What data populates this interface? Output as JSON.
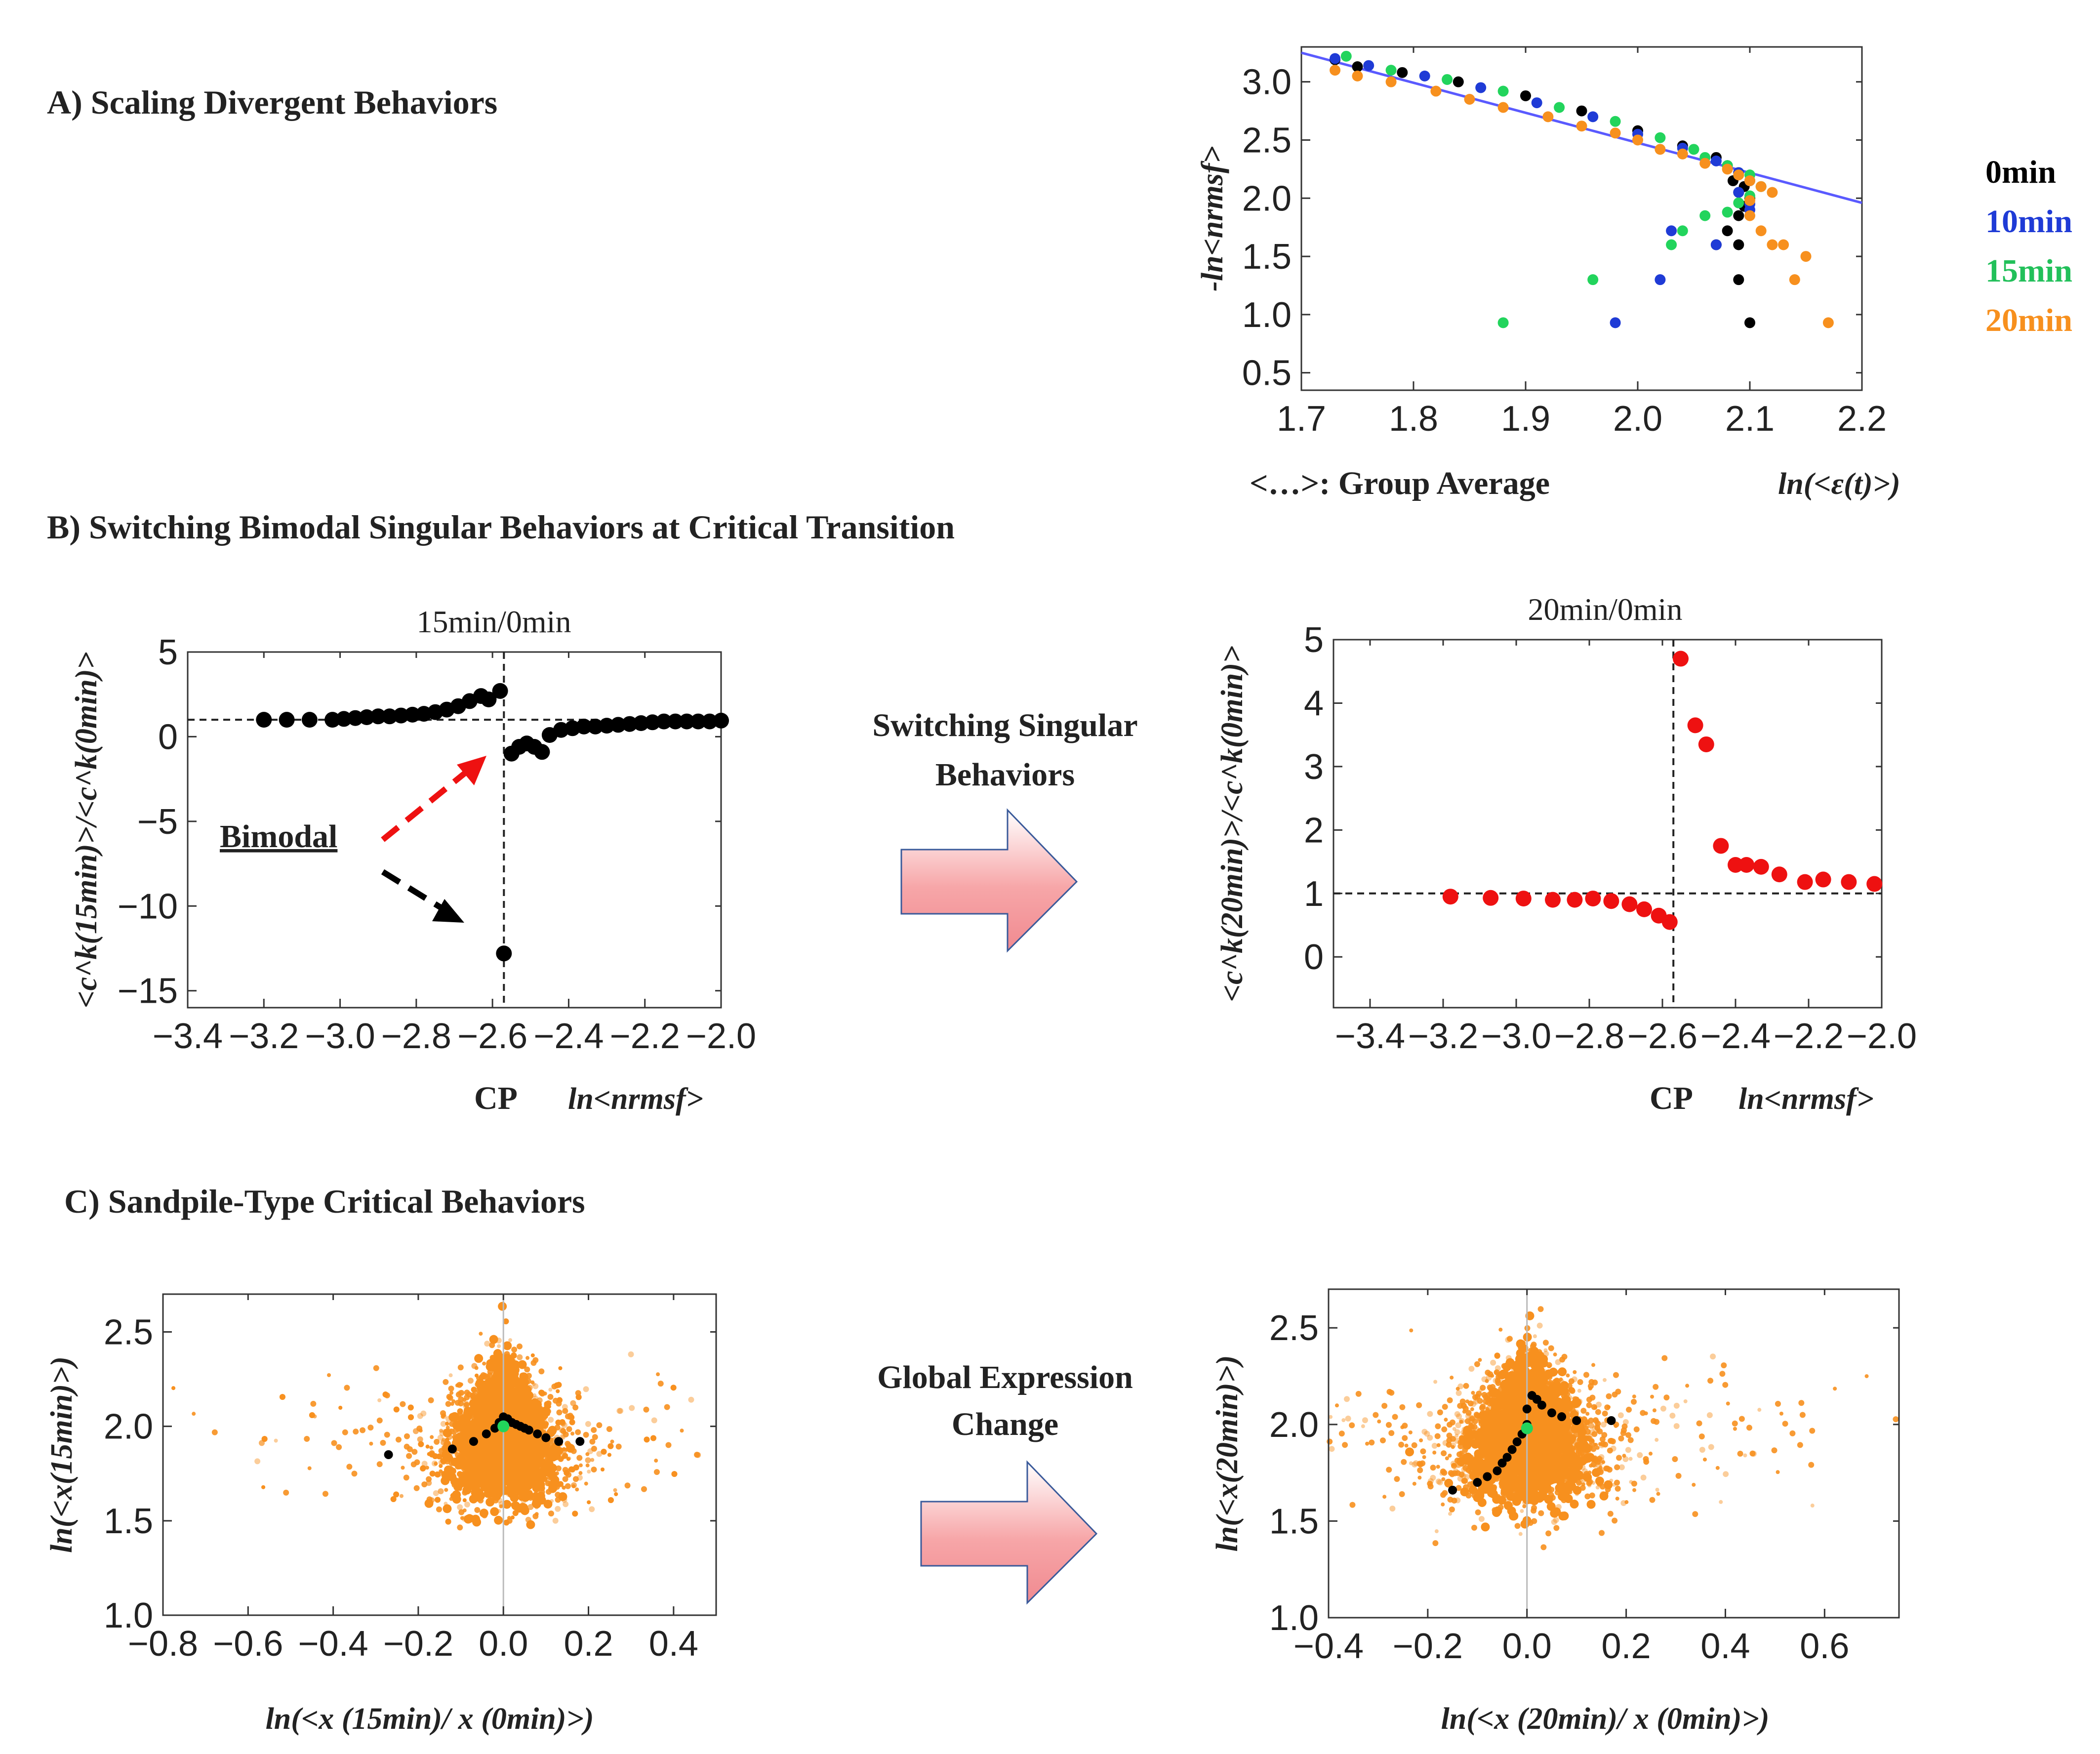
{
  "sections": {
    "a": "A) Scaling Divergent Behaviors",
    "b": "B) Switching  Bimodal Singular  Behaviors at Critical Transition",
    "c": "C) Sandpile-Type Critical  Behaviors"
  },
  "colors": {
    "black": "#000000",
    "blue": "#1f3bd6",
    "green": "#22d45c",
    "orange": "#f7901e",
    "red": "#ee1111",
    "fit": "#5a5aff"
  },
  "chart_data": [
    {
      "id": "A",
      "type": "scatter",
      "title": "",
      "xlabel_left": "<…>: Group Average",
      "xlabel_right": "ln(<ε(t)>)",
      "ylabel": "-ln<nrmsf>",
      "xlim": [
        1.7,
        2.2
      ],
      "ylim": [
        0.35,
        3.3
      ],
      "xticks": [
        "1.7",
        "1.8",
        "1.9",
        "2.0",
        "2.1",
        "2.2"
      ],
      "yticks": [
        "0.5",
        "1.0",
        "1.5",
        "2.0",
        "2.5",
        "3.0"
      ],
      "legend": [
        "0min",
        "10min",
        "15min",
        "20min"
      ],
      "fit_line": {
        "x": [
          1.7,
          2.2
        ],
        "y": [
          3.25,
          1.96
        ]
      },
      "series": [
        {
          "name": "0min",
          "color": "black",
          "points": [
            [
              1.73,
              3.19
            ],
            [
              1.75,
              3.13
            ],
            [
              1.79,
              3.08
            ],
            [
              1.84,
              3.0
            ],
            [
              1.9,
              2.88
            ],
            [
              1.95,
              2.75
            ],
            [
              2.0,
              2.58
            ],
            [
              2.04,
              2.45
            ],
            [
              2.07,
              2.35
            ],
            [
              2.08,
              2.28
            ],
            [
              2.09,
              2.22
            ],
            [
              2.085,
              2.15
            ],
            [
              2.095,
              2.1
            ],
            [
              2.09,
              2.05
            ],
            [
              2.1,
              2.0
            ],
            [
              2.095,
              1.93
            ],
            [
              2.09,
              1.85
            ],
            [
              2.08,
              1.72
            ],
            [
              2.07,
              1.6
            ],
            [
              2.09,
              1.6
            ],
            [
              2.09,
              1.3
            ],
            [
              2.1,
              0.93
            ]
          ]
        },
        {
          "name": "10min",
          "color": "blue",
          "points": [
            [
              1.73,
              3.2
            ],
            [
              1.76,
              3.14
            ],
            [
              1.81,
              3.05
            ],
            [
              1.86,
              2.95
            ],
            [
              1.91,
              2.82
            ],
            [
              1.96,
              2.7
            ],
            [
              2.0,
              2.55
            ],
            [
              2.04,
              2.43
            ],
            [
              2.07,
              2.32
            ],
            [
              2.09,
              2.22
            ],
            [
              2.1,
              2.15
            ],
            [
              2.09,
              2.05
            ],
            [
              2.1,
              1.95
            ],
            [
              2.1,
              1.9
            ],
            [
              2.03,
              1.72
            ],
            [
              2.07,
              1.6
            ],
            [
              2.02,
              1.3
            ],
            [
              1.98,
              0.93
            ]
          ]
        },
        {
          "name": "15min",
          "color": "green",
          "points": [
            [
              1.74,
              3.22
            ],
            [
              1.78,
              3.1
            ],
            [
              1.83,
              3.02
            ],
            [
              1.88,
              2.92
            ],
            [
              1.93,
              2.78
            ],
            [
              1.98,
              2.66
            ],
            [
              2.02,
              2.52
            ],
            [
              2.05,
              2.42
            ],
            [
              2.06,
              2.35
            ],
            [
              2.08,
              2.28
            ],
            [
              2.1,
              2.2
            ],
            [
              2.11,
              2.1
            ],
            [
              2.1,
              2.02
            ],
            [
              2.09,
              1.96
            ],
            [
              2.08,
              1.88
            ],
            [
              2.06,
              1.85
            ],
            [
              2.04,
              1.72
            ],
            [
              2.03,
              1.6
            ],
            [
              1.96,
              1.3
            ],
            [
              1.88,
              0.93
            ]
          ]
        },
        {
          "name": "20min",
          "color": "orange",
          "points": [
            [
              1.73,
              3.1
            ],
            [
              1.75,
              3.05
            ],
            [
              1.78,
              3.0
            ],
            [
              1.82,
              2.92
            ],
            [
              1.85,
              2.85
            ],
            [
              1.88,
              2.78
            ],
            [
              1.92,
              2.7
            ],
            [
              1.95,
              2.62
            ],
            [
              1.98,
              2.56
            ],
            [
              2.0,
              2.5
            ],
            [
              2.02,
              2.42
            ],
            [
              2.04,
              2.38
            ],
            [
              2.06,
              2.3
            ],
            [
              2.08,
              2.25
            ],
            [
              2.09,
              2.2
            ],
            [
              2.1,
              2.15
            ],
            [
              2.11,
              2.1
            ],
            [
              2.12,
              2.05
            ],
            [
              2.1,
              1.98
            ],
            [
              2.1,
              1.85
            ],
            [
              2.11,
              1.72
            ],
            [
              2.12,
              1.6
            ],
            [
              2.13,
              1.6
            ],
            [
              2.15,
              1.5
            ],
            [
              2.14,
              1.3
            ],
            [
              2.17,
              0.93
            ]
          ]
        }
      ]
    },
    {
      "id": "B1",
      "type": "scatter",
      "title": "15min/0min",
      "ylabel": "<c^k(15min)>/<c^k(0min)>",
      "xlabel_left": "CP",
      "xlabel_right": "ln<nrmsf>",
      "xlim": [
        -3.4,
        -2.0
      ],
      "ylim": [
        -16,
        5
      ],
      "xticks": [
        "−3.4",
        "−3.2",
        "−3.0",
        "−2.8",
        "−2.6",
        "−2.4",
        "−2.2",
        "−2.0"
      ],
      "yticks": [
        "5",
        "0",
        "−5",
        "−10",
        "−15"
      ],
      "critical_point_x": -2.57,
      "hline_y": 1,
      "annotation": "Bimodal",
      "series": [
        {
          "name": "ratio",
          "color": "black",
          "points": [
            [
              -3.2,
              1
            ],
            [
              -3.14,
              1
            ],
            [
              -3.08,
              1
            ],
            [
              -3.02,
              1
            ],
            [
              -2.99,
              1.05
            ],
            [
              -2.96,
              1.1
            ],
            [
              -2.93,
              1.15
            ],
            [
              -2.9,
              1.2
            ],
            [
              -2.87,
              1.2
            ],
            [
              -2.84,
              1.25
            ],
            [
              -2.81,
              1.3
            ],
            [
              -2.78,
              1.35
            ],
            [
              -2.75,
              1.45
            ],
            [
              -2.72,
              1.6
            ],
            [
              -2.69,
              1.8
            ],
            [
              -2.66,
              2.1
            ],
            [
              -2.63,
              2.4
            ],
            [
              -2.61,
              2.2
            ],
            [
              -2.58,
              2.7
            ],
            [
              -2.57,
              -12.8
            ],
            [
              -2.55,
              -1.0
            ],
            [
              -2.53,
              -0.6
            ],
            [
              -2.51,
              -0.4
            ],
            [
              -2.49,
              -0.6
            ],
            [
              -2.47,
              -0.9
            ],
            [
              -2.45,
              0.1
            ],
            [
              -2.42,
              0.4
            ],
            [
              -2.39,
              0.5
            ],
            [
              -2.36,
              0.6
            ],
            [
              -2.33,
              0.6
            ],
            [
              -2.3,
              0.65
            ],
            [
              -2.27,
              0.7
            ],
            [
              -2.24,
              0.75
            ],
            [
              -2.21,
              0.8
            ],
            [
              -2.18,
              0.85
            ],
            [
              -2.15,
              0.9
            ],
            [
              -2.12,
              0.9
            ],
            [
              -2.09,
              0.9
            ],
            [
              -2.06,
              0.9
            ],
            [
              -2.03,
              0.9
            ],
            [
              -2.0,
              0.95
            ]
          ]
        }
      ]
    },
    {
      "id": "B2",
      "type": "scatter",
      "title": "20min/0min",
      "ylabel": "<c^k(20min)>/<c^k(0min)>",
      "xlabel_left": "CP",
      "xlabel_right": "ln<nrmsf>",
      "xlim": [
        -3.5,
        -2.0
      ],
      "ylim": [
        -0.8,
        5
      ],
      "xticks": [
        "−3.4",
        "−3.2",
        "−3.0",
        "−2.8",
        "−2.6",
        "−2.4",
        "−2.2",
        "−2.0"
      ],
      "yticks": [
        "5",
        "4",
        "3",
        "2",
        "1",
        "0"
      ],
      "critical_point_x": -2.57,
      "hline_y": 1,
      "series": [
        {
          "name": "ratio",
          "color": "red",
          "points": [
            [
              -3.18,
              0.95
            ],
            [
              -3.07,
              0.93
            ],
            [
              -2.98,
              0.92
            ],
            [
              -2.9,
              0.9
            ],
            [
              -2.84,
              0.9
            ],
            [
              -2.79,
              0.92
            ],
            [
              -2.74,
              0.88
            ],
            [
              -2.69,
              0.83
            ],
            [
              -2.65,
              0.75
            ],
            [
              -2.61,
              0.65
            ],
            [
              -2.58,
              0.55
            ],
            [
              -2.55,
              4.7
            ],
            [
              -2.51,
              3.65
            ],
            [
              -2.48,
              3.35
            ],
            [
              -2.44,
              1.75
            ],
            [
              -2.4,
              1.45
            ],
            [
              -2.37,
              1.45
            ],
            [
              -2.33,
              1.42
            ],
            [
              -2.28,
              1.3
            ],
            [
              -2.21,
              1.18
            ],
            [
              -2.16,
              1.22
            ],
            [
              -2.09,
              1.18
            ],
            [
              -2.02,
              1.15
            ]
          ]
        }
      ]
    },
    {
      "id": "C1",
      "type": "scatter",
      "title": "",
      "xlabel": "ln(<x (15min)/  x (0min)>)",
      "ylabel": "ln(<x(15min)>)",
      "xlim": [
        -0.8,
        0.5
      ],
      "ylim": [
        1.0,
        2.7
      ],
      "xticks": [
        "−0.8",
        "−0.6",
        "−0.4",
        "−0.2",
        "0.0",
        "0.2",
        "0.4"
      ],
      "yticks": [
        "1.0",
        "1.5",
        "2.0",
        "2.5"
      ],
      "cloud": {
        "color": "orange",
        "center": [
          0.0,
          1.95
        ],
        "description_count": "dense"
      },
      "series": [
        {
          "name": "group averages",
          "color": "black",
          "points": [
            [
              -0.27,
              1.85
            ],
            [
              -0.12,
              1.88
            ],
            [
              -0.07,
              1.92
            ],
            [
              -0.04,
              1.96
            ],
            [
              -0.02,
              1.99
            ],
            [
              -0.01,
              2.02
            ],
            [
              0.0,
              2.05
            ],
            [
              0.01,
              2.04
            ],
            [
              0.02,
              2.02
            ],
            [
              0.03,
              2.01
            ],
            [
              0.04,
              2.0
            ],
            [
              0.05,
              1.99
            ],
            [
              0.06,
              1.98
            ],
            [
              0.08,
              1.96
            ],
            [
              0.1,
              1.94
            ],
            [
              0.13,
              1.92
            ],
            [
              0.18,
              1.92
            ]
          ]
        },
        {
          "name": "center",
          "color": "green",
          "points": [
            [
              0.0,
              2.0
            ]
          ]
        }
      ]
    },
    {
      "id": "C2",
      "type": "scatter",
      "title": "",
      "xlabel": "ln(<x (20min)/  x (0min)>)",
      "ylabel": "ln(<x(20min)>)",
      "xlim": [
        -0.4,
        0.75
      ],
      "ylim": [
        1.0,
        2.7
      ],
      "xticks": [
        "−0.4",
        "−0.2",
        "0.0",
        "0.2",
        "0.4",
        "0.6"
      ],
      "yticks": [
        "1.0",
        "1.5",
        "2.0",
        "2.5"
      ],
      "cloud": {
        "color": "orange",
        "center": [
          0.0,
          1.95
        ],
        "description_count": "dense"
      },
      "series": [
        {
          "name": "group averages",
          "color": "black",
          "points": [
            [
              -0.15,
              1.66
            ],
            [
              -0.1,
              1.7
            ],
            [
              -0.08,
              1.73
            ],
            [
              -0.06,
              1.76
            ],
            [
              -0.05,
              1.8
            ],
            [
              -0.04,
              1.83
            ],
            [
              -0.03,
              1.87
            ],
            [
              -0.02,
              1.91
            ],
            [
              -0.01,
              1.95
            ],
            [
              0.0,
              2.0
            ],
            [
              0.0,
              2.08
            ],
            [
              0.01,
              2.15
            ],
            [
              0.02,
              2.13
            ],
            [
              0.03,
              2.1
            ],
            [
              0.05,
              2.06
            ],
            [
              0.07,
              2.04
            ],
            [
              0.1,
              2.02
            ],
            [
              0.17,
              2.02
            ]
          ]
        },
        {
          "name": "center",
          "color": "green",
          "points": [
            [
              0.0,
              1.98
            ]
          ]
        }
      ]
    }
  ],
  "middle": {
    "switching_line1": "Switching  Singular",
    "switching_line2": "Behaviors",
    "global_line1": "Global Expression",
    "global_line2": "Change"
  }
}
